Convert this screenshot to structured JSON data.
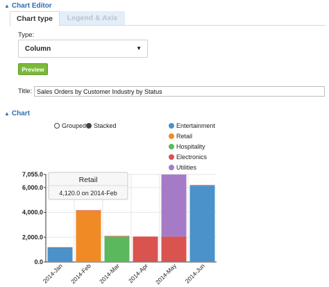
{
  "editor": {
    "section_title": "Chart Editor",
    "tabs": [
      {
        "label": "Chart type",
        "active": true
      },
      {
        "label": "Legend & Axis",
        "active": false
      }
    ],
    "type_label": "Type:",
    "type_value": "Column",
    "preview_label": "Preview",
    "title_label": "Title:",
    "title_value": "Sales Orders by Customer Industry by Status"
  },
  "chart_section": {
    "section_title": "Chart",
    "modes": [
      {
        "label": "Grouped",
        "selected": false
      },
      {
        "label": "Stacked",
        "selected": true
      }
    ],
    "tooltip": {
      "title": "Retail",
      "text": "4,120.0 on 2014-Feb"
    }
  },
  "colors": {
    "Entertainment": "#4a92c9",
    "Retail": "#f08a24",
    "Hospitality": "#5cb85c",
    "Electronics": "#d9534f",
    "Utilities": "#a57bc8"
  },
  "chart_data": {
    "type": "bar",
    "stacked": true,
    "categories": [
      "2014-Jan",
      "2014-Feb",
      "2014-Mar",
      "2014-Apr",
      "2014-May",
      "2014-Jun"
    ],
    "series": [
      {
        "name": "Entertainment",
        "values": [
          1150,
          0,
          0,
          0,
          0,
          6150
        ]
      },
      {
        "name": "Retail",
        "values": [
          0,
          4120,
          0,
          0,
          0,
          0
        ]
      },
      {
        "name": "Hospitality",
        "values": [
          0,
          0,
          2050,
          0,
          0,
          0
        ]
      },
      {
        "name": "Electronics",
        "values": [
          40,
          50,
          50,
          2050,
          2050,
          50
        ]
      },
      {
        "name": "Utilities",
        "values": [
          0,
          0,
          0,
          0,
          5000,
          0
        ]
      }
    ],
    "yticks": [
      "0.0",
      "2,000.0",
      "4,000.0",
      "6,000.0",
      "7,055.0"
    ],
    "ytick_values": [
      0,
      2000,
      4000,
      6000,
      7055
    ],
    "ylim": [
      0,
      7055
    ],
    "legend_position": "top-right",
    "title": "",
    "xlabel": "",
    "ylabel": ""
  }
}
